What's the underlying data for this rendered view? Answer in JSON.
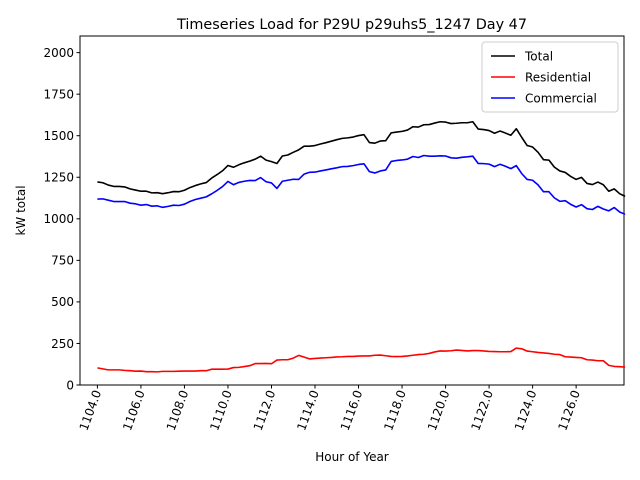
{
  "chart_data": {
    "type": "line",
    "title": "Timeseries Load for P29U p29uhs5_1247  Day 47",
    "xlabel": "Hour of Year",
    "ylabel": "kW total",
    "xlim": [
      1103.2,
      1128.2
    ],
    "ylim": [
      0,
      2100
    ],
    "xticks": [
      1104,
      1106,
      1108,
      1110,
      1112,
      1114,
      1116,
      1118,
      1120,
      1122,
      1124,
      1126
    ],
    "xtick_labels": [
      "1104.0",
      "1106.0",
      "1108.0",
      "1110.0",
      "1112.0",
      "1114.0",
      "1116.0",
      "1118.0",
      "1120.0",
      "1122.0",
      "1124.0",
      "1126.0"
    ],
    "yticks": [
      0,
      250,
      500,
      750,
      1000,
      1250,
      1500,
      1750,
      2000
    ],
    "ytick_labels": [
      "0",
      "250",
      "500",
      "750",
      "1000",
      "1250",
      "1500",
      "1750",
      "2000"
    ],
    "legend_position": "top-right",
    "x_start": 1104.0,
    "x_step": 0.25,
    "series": [
      {
        "name": "Total",
        "color": "#000000",
        "values": [
          1222,
          1217,
          1203,
          1195,
          1195,
          1192,
          1180,
          1173,
          1166,
          1166,
          1156,
          1157,
          1151,
          1157,
          1164,
          1163,
          1172,
          1188,
          1200,
          1210,
          1218,
          1245,
          1266,
          1289,
          1321,
          1310,
          1325,
          1337,
          1347,
          1359,
          1377,
          1353,
          1344,
          1333,
          1378,
          1384,
          1400,
          1415,
          1437,
          1437,
          1441,
          1450,
          1458,
          1467,
          1476,
          1484,
          1487,
          1492,
          1501,
          1506,
          1459,
          1455,
          1468,
          1470,
          1517,
          1522,
          1526,
          1534,
          1554,
          1552,
          1566,
          1567,
          1576,
          1584,
          1582,
          1573,
          1575,
          1578,
          1578,
          1584,
          1540,
          1537,
          1531,
          1515,
          1528,
          1516,
          1503,
          1542,
          1490,
          1441,
          1432,
          1400,
          1356,
          1353,
          1311,
          1288,
          1279,
          1255,
          1237,
          1249,
          1213,
          1206,
          1221,
          1205,
          1166,
          1180,
          1151,
          1135
        ]
      },
      {
        "name": "Residential",
        "color": "#ff0000",
        "values": [
          103,
          97,
          91,
          91,
          91,
          88,
          86,
          83,
          84,
          80,
          80,
          79,
          82,
          82,
          82,
          83,
          84,
          84,
          84,
          86,
          86,
          95,
          95,
          95,
          96,
          105,
          106,
          111,
          116,
          129,
          129,
          130,
          128,
          150,
          152,
          152,
          162,
          178,
          168,
          157,
          160,
          162,
          164,
          166,
          169,
          170,
          172,
          172,
          174,
          175,
          175,
          179,
          180,
          176,
          172,
          171,
          172,
          175,
          179,
          183,
          185,
          190,
          199,
          205,
          204,
          206,
          210,
          208,
          205,
          207,
          207,
          205,
          202,
          201,
          200,
          200,
          201,
          222,
          218,
          204,
          200,
          196,
          193,
          190,
          185,
          183,
          170,
          168,
          166,
          164,
          152,
          150,
          146,
          146,
          118,
          112,
          110,
          108
        ]
      },
      {
        "name": "Commercial",
        "color": "#0000ff",
        "values": [
          1119,
          1120,
          1112,
          1104,
          1104,
          1104,
          1094,
          1090,
          1082,
          1086,
          1076,
          1078,
          1069,
          1075,
          1082,
          1080,
          1088,
          1104,
          1116,
          1124,
          1132,
          1150,
          1171,
          1194,
          1225,
          1205,
          1219,
          1226,
          1231,
          1230,
          1248,
          1223,
          1216,
          1183,
          1226,
          1232,
          1238,
          1237,
          1269,
          1280,
          1281,
          1288,
          1294,
          1301,
          1307,
          1314,
          1315,
          1320,
          1327,
          1331,
          1284,
          1276,
          1288,
          1294,
          1345,
          1351,
          1354,
          1359,
          1375,
          1369,
          1381,
          1377,
          1377,
          1379,
          1378,
          1367,
          1365,
          1370,
          1373,
          1377,
          1333,
          1332,
          1329,
          1314,
          1328,
          1316,
          1302,
          1320,
          1272,
          1237,
          1232,
          1204,
          1163,
          1163,
          1126,
          1105,
          1109,
          1087,
          1071,
          1085,
          1061,
          1056,
          1075,
          1059,
          1048,
          1068,
          1041,
          1027
        ]
      }
    ]
  }
}
